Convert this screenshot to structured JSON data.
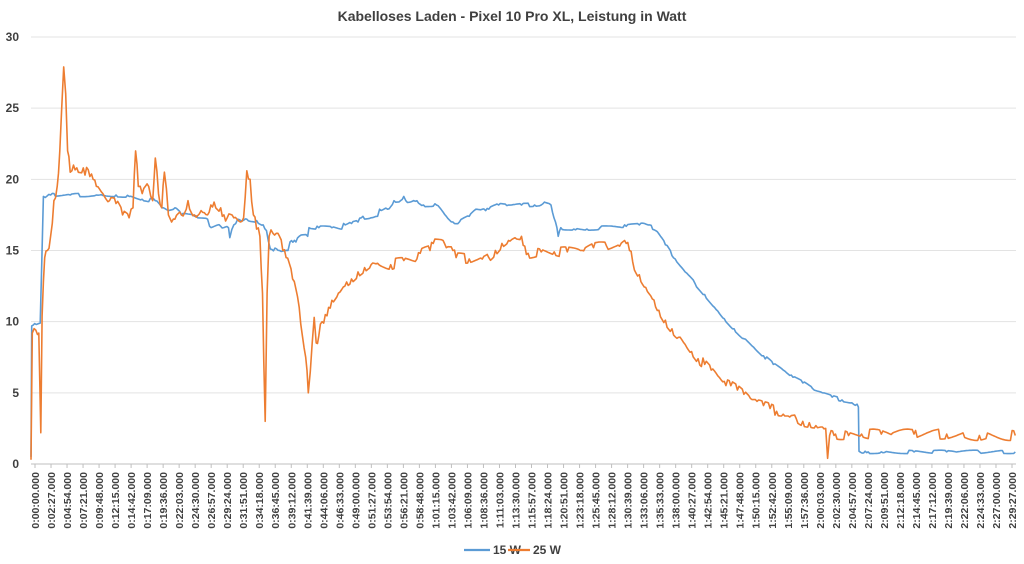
{
  "chart_data": {
    "type": "line",
    "title": "Kabelloses Laden - Pixel 10 Pro XL, Leistung in Watt",
    "xlabel": "",
    "ylabel": "",
    "ylim": [
      0,
      30
    ],
    "yticks": [
      "0",
      "5",
      "10",
      "15",
      "20",
      "25",
      "30"
    ],
    "grid": true,
    "legend_position": "bottom",
    "x_tick_labels": [
      "0:00:00.000",
      "0:02:27.000",
      "0:04:54.000",
      "0:07:21.000",
      "0:09:48.000",
      "0:12:15.000",
      "0:14:42.000",
      "0:17:09.000",
      "0:19:36.000",
      "0:22:03.000",
      "0:24:30.000",
      "0:26:57.000",
      "0:29:24.000",
      "0:31:51.000",
      "0:34:18.000",
      "0:36:45.000",
      "0:39:12.000",
      "0:41:39.000",
      "0:44:06.000",
      "0:46:33.000",
      "0:49:00.000",
      "0:51:27.000",
      "0:53:54.000",
      "0:56:21.000",
      "0:58:48.000",
      "1:01:15.000",
      "1:03:42.000",
      "1:06:09.000",
      "1:08:36.000",
      "1:11:03.000",
      "1:13:30.000",
      "1:15:57.000",
      "1:18:24.000",
      "1:20:51.000",
      "1:23:18.000",
      "1:25:45.000",
      "1:28:12.000",
      "1:30:39.000",
      "1:33:06.000",
      "1:35:33.000",
      "1:38:00.000",
      "1:40:27.000",
      "1:42:54.000",
      "1:45:21.000",
      "1:47:48.000",
      "1:50:15.000",
      "1:52:42.000",
      "1:55:09.000",
      "1:57:36.000",
      "2:00:03.000",
      "2:02:30.000",
      "2:04:57.000",
      "2:07:24.000",
      "2:09:51.000",
      "2:12:18.000",
      "2:14:45.000",
      "2:17:12.000",
      "2:19:39.000",
      "2:22:06.000",
      "2:24:33.000",
      "2:27:00.000",
      "2:29:27.000"
    ],
    "x_range_minutes": [
      0,
      150.6
    ],
    "series": [
      {
        "name": "15 W",
        "color": "#5b9bd5",
        "points": [
          [
            0,
            0.5
          ],
          [
            0.1,
            9.7
          ],
          [
            0.8,
            9.8
          ],
          [
            1.4,
            9.9
          ],
          [
            1.9,
            18.8
          ],
          [
            3,
            18.9
          ],
          [
            6,
            18.9
          ],
          [
            10,
            18.9
          ],
          [
            13,
            18.9
          ],
          [
            15,
            18.8
          ],
          [
            17,
            18.6
          ],
          [
            19,
            18.5
          ],
          [
            20,
            18.0
          ],
          [
            21,
            17.8
          ],
          [
            22,
            18.0
          ],
          [
            23,
            17.5
          ],
          [
            25,
            17.4
          ],
          [
            27,
            17.2
          ],
          [
            27.3,
            16.7
          ],
          [
            29,
            16.7
          ],
          [
            30.2,
            16.6
          ],
          [
            30.4,
            15.9
          ],
          [
            31,
            16.8
          ],
          [
            31.6,
            17.2
          ],
          [
            33,
            17.2
          ],
          [
            34.5,
            17.1
          ],
          [
            35.5,
            16.8
          ],
          [
            36,
            16.4
          ],
          [
            36.6,
            15.1
          ],
          [
            38,
            15.0
          ],
          [
            39.3,
            15.0
          ],
          [
            39.6,
            15.6
          ],
          [
            40.5,
            15.6
          ],
          [
            41,
            16.0
          ],
          [
            42.3,
            16.0
          ],
          [
            42.5,
            16.6
          ],
          [
            44,
            16.6
          ],
          [
            46,
            16.6
          ],
          [
            47.5,
            16.5
          ],
          [
            47.8,
            16.9
          ],
          [
            49,
            16.9
          ],
          [
            50,
            17.0
          ],
          [
            50.5,
            17.3
          ],
          [
            52,
            17.3
          ],
          [
            53,
            17.4
          ],
          [
            53.3,
            17.9
          ],
          [
            54.5,
            17.9
          ],
          [
            55.5,
            18.5
          ],
          [
            56.5,
            18.5
          ],
          [
            57,
            18.8
          ],
          [
            57.3,
            18.5
          ],
          [
            59,
            18.5
          ],
          [
            60,
            18.2
          ],
          [
            62,
            18.2
          ],
          [
            62.5,
            18.0
          ],
          [
            63.5,
            17.4
          ],
          [
            64.5,
            17.0
          ],
          [
            65.5,
            17.0
          ],
          [
            67,
            17.4
          ],
          [
            68,
            17.9
          ],
          [
            69,
            17.9
          ],
          [
            69.5,
            17.8
          ],
          [
            70,
            17.9
          ],
          [
            71.5,
            18.2
          ],
          [
            73,
            18.2
          ],
          [
            75,
            18.2
          ],
          [
            77,
            18.2
          ],
          [
            78,
            18.2
          ],
          [
            78.5,
            18.4
          ],
          [
            79.5,
            18.2
          ],
          [
            80.2,
            17.0
          ],
          [
            80.6,
            16.0
          ],
          [
            81,
            16.6
          ],
          [
            83,
            16.5
          ],
          [
            85,
            16.5
          ],
          [
            87,
            16.6
          ],
          [
            89,
            16.7
          ],
          [
            91,
            16.7
          ],
          [
            93,
            16.8
          ],
          [
            94.6,
            16.8
          ],
          [
            95.5,
            16.4
          ],
          [
            97,
            15.4
          ],
          [
            98.5,
            14.4
          ],
          [
            100,
            13.5
          ],
          [
            101.5,
            12.7
          ],
          [
            103,
            11.9
          ],
          [
            104.5,
            11.0
          ],
          [
            106,
            10.2
          ],
          [
            107.5,
            9.5
          ],
          [
            109,
            8.8
          ],
          [
            110.5,
            8.2
          ],
          [
            112,
            7.6
          ],
          [
            113.5,
            7.0
          ],
          [
            115,
            6.6
          ],
          [
            116.5,
            6.1
          ],
          [
            118,
            5.7
          ],
          [
            119.5,
            5.3
          ],
          [
            121,
            5.0
          ],
          [
            122.5,
            4.7
          ],
          [
            124,
            4.5
          ],
          [
            125.5,
            4.3
          ],
          [
            126.3,
            4.2
          ],
          [
            126.5,
            4.0
          ],
          [
            126.6,
            0.9
          ],
          [
            128,
            0.85
          ],
          [
            130,
            0.85
          ],
          [
            135,
            0.85
          ],
          [
            140,
            0.85
          ],
          [
            145,
            0.85
          ],
          [
            150.5,
            0.85
          ]
        ]
      },
      {
        "name": "25 W",
        "color": "#ed7d31",
        "points": [
          [
            0,
            0.3
          ],
          [
            0.2,
            9.2
          ],
          [
            1,
            9.1
          ],
          [
            1.2,
            9.2
          ],
          [
            1.5,
            2.2
          ],
          [
            1.7,
            10.4
          ],
          [
            2.1,
            14.5
          ],
          [
            2.5,
            15.0
          ],
          [
            3,
            16.0
          ],
          [
            3.5,
            18.5
          ],
          [
            4,
            19.5
          ],
          [
            4.4,
            22.0
          ],
          [
            4.7,
            25.0
          ],
          [
            5.0,
            27.9
          ],
          [
            5.3,
            26.0
          ],
          [
            5.6,
            22.0
          ],
          [
            6,
            20.5
          ],
          [
            6.5,
            21.0
          ],
          [
            7,
            20.8
          ],
          [
            8,
            20.8
          ],
          [
            9,
            20.2
          ],
          [
            9.5,
            20.0
          ],
          [
            10,
            19.5
          ],
          [
            11,
            19.0
          ],
          [
            12,
            18.5
          ],
          [
            13,
            18.3
          ],
          [
            14,
            17.5
          ],
          [
            15,
            17.3
          ],
          [
            15.6,
            18.0
          ],
          [
            16,
            22.0
          ],
          [
            16.4,
            19.5
          ],
          [
            17,
            19.0
          ],
          [
            18,
            19.5
          ],
          [
            18.6,
            18.5
          ],
          [
            19,
            21.5
          ],
          [
            19.5,
            19.0
          ],
          [
            20,
            18.0
          ],
          [
            20.4,
            20.5
          ],
          [
            21,
            17.5
          ],
          [
            21.5,
            17.0
          ],
          [
            22,
            17.2
          ],
          [
            23,
            17.5
          ],
          [
            24,
            18.5
          ],
          [
            25,
            17.5
          ],
          [
            26,
            17.8
          ],
          [
            27,
            17.5
          ],
          [
            27.5,
            18.2
          ],
          [
            28,
            18.4
          ],
          [
            29,
            18.0
          ],
          [
            29.5,
            17.5
          ],
          [
            30,
            17.3
          ],
          [
            31,
            17.3
          ],
          [
            32,
            17.0
          ],
          [
            32.5,
            17.3
          ],
          [
            33,
            20.6
          ],
          [
            33.5,
            20.0
          ],
          [
            34,
            17.5
          ],
          [
            34.5,
            16.5
          ],
          [
            35,
            16.0
          ],
          [
            35.4,
            12.0
          ],
          [
            35.8,
            3.0
          ],
          [
            36.1,
            12.0
          ],
          [
            36.4,
            16.0
          ],
          [
            37,
            16.2
          ],
          [
            38,
            16.0
          ],
          [
            38.5,
            15.0
          ],
          [
            39,
            14.5
          ],
          [
            40,
            13.0
          ],
          [
            41,
            11.0
          ],
          [
            41.5,
            9.0
          ],
          [
            42,
            7.5
          ],
          [
            42.4,
            5.0
          ],
          [
            42.7,
            6.5
          ],
          [
            43,
            8.5
          ],
          [
            43.3,
            10.3
          ],
          [
            43.6,
            8.5
          ],
          [
            44,
            9.0
          ],
          [
            44.5,
            10.0
          ],
          [
            45,
            10.5
          ],
          [
            45.5,
            11.0
          ],
          [
            46,
            11.5
          ],
          [
            47,
            12.0
          ],
          [
            48,
            12.5
          ],
          [
            49,
            13.0
          ],
          [
            50,
            13.5
          ],
          [
            51,
            13.8
          ],
          [
            52,
            14.0
          ],
          [
            53,
            14.1
          ],
          [
            55,
            14.0
          ],
          [
            57,
            14.3
          ],
          [
            59,
            14.4
          ],
          [
            59.5,
            14.8
          ],
          [
            61,
            15.0
          ],
          [
            61.5,
            15.5
          ],
          [
            63,
            15.7
          ],
          [
            63.5,
            15.2
          ],
          [
            64.5,
            15.0
          ],
          [
            65,
            14.5
          ],
          [
            67,
            14.4
          ],
          [
            69,
            14.4
          ],
          [
            70,
            14.5
          ],
          [
            71,
            15.0
          ],
          [
            72,
            15.5
          ],
          [
            73,
            15.7
          ],
          [
            74,
            15.9
          ],
          [
            75,
            16.0
          ],
          [
            75.5,
            15.3
          ],
          [
            76,
            14.8
          ],
          [
            78,
            14.9
          ],
          [
            80,
            14.9
          ],
          [
            82,
            14.9
          ],
          [
            84,
            15.0
          ],
          [
            86,
            15.2
          ],
          [
            88,
            15.3
          ],
          [
            90,
            15.3
          ],
          [
            91,
            15.5
          ],
          [
            91.5,
            15.0
          ],
          [
            92,
            14.2
          ],
          [
            93,
            13.3
          ],
          [
            94,
            12.4
          ],
          [
            95,
            11.6
          ],
          [
            96,
            10.8
          ],
          [
            97,
            10.1
          ],
          [
            98,
            9.5
          ],
          [
            99,
            8.9
          ],
          [
            100,
            8.4
          ],
          [
            101,
            7.9
          ],
          [
            102,
            7.4
          ],
          [
            103,
            7.0
          ],
          [
            104,
            6.6
          ],
          [
            105,
            6.2
          ],
          [
            106,
            5.8
          ],
          [
            107,
            5.5
          ],
          [
            108,
            5.2
          ],
          [
            109,
            4.9
          ],
          [
            110,
            4.6
          ],
          [
            111,
            4.4
          ],
          [
            112,
            4.1
          ],
          [
            113,
            3.9
          ],
          [
            114,
            3.7
          ],
          [
            115,
            3.5
          ],
          [
            116,
            3.3
          ],
          [
            117,
            3.2
          ],
          [
            118,
            3.0
          ],
          [
            119,
            2.9
          ],
          [
            120,
            2.7
          ],
          [
            121,
            2.6
          ],
          [
            121.5,
            2.5
          ],
          [
            121.8,
            0.4
          ],
          [
            122.1,
            2.0
          ],
          [
            123,
            2.1
          ],
          [
            125,
            2.0
          ],
          [
            127,
            2.1
          ],
          [
            130,
            2.1
          ],
          [
            135,
            2.1
          ],
          [
            140,
            2.1
          ],
          [
            145,
            2.0
          ],
          [
            150.5,
            2.0
          ]
        ]
      }
    ]
  }
}
